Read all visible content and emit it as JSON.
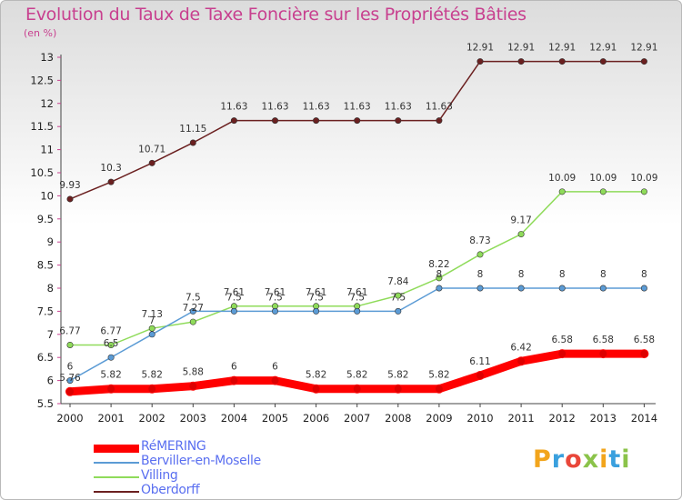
{
  "title": "Evolution du Taux de Taxe Foncière sur les Propriétés Bâties",
  "unit_label": "(en %)",
  "logo": {
    "text": "Proxiti",
    "colors": [
      "#f2a51c",
      "#3aa0de",
      "#e9473a",
      "#8bc34a",
      "#f2a51c",
      "#3aa0de",
      "#8bc34a"
    ]
  },
  "chart_data": {
    "type": "line",
    "x": [
      "2000",
      "2001",
      "2002",
      "2003",
      "2004",
      "2005",
      "2006",
      "2007",
      "2008",
      "2009",
      "2010",
      "2011",
      "2012",
      "2013",
      "2014"
    ],
    "ylim": [
      5.5,
      13
    ],
    "yticks": [
      "5.5",
      "6",
      "6.5",
      "7",
      "7.5",
      "8",
      "8.5",
      "9",
      "9.5",
      "10",
      "10.5",
      "11",
      "11.5",
      "12",
      "12.5",
      "13"
    ],
    "grid": false,
    "legend_position": "bottom-left",
    "series": [
      {
        "name": "RéMERING",
        "color": "#ff0000",
        "values": [
          5.76,
          5.82,
          5.82,
          5.88,
          6,
          6,
          5.82,
          5.82,
          5.82,
          5.82,
          6.11,
          6.42,
          6.58,
          6.58,
          6.58
        ],
        "labels": [
          "5.76",
          "5.82",
          "5.82",
          "5.88",
          "6",
          "6",
          "5.82",
          "5.82",
          "5.82",
          "5.82",
          "6.11",
          "6.42",
          "6.58",
          "6.58",
          "6.58"
        ]
      },
      {
        "name": "Berviller-en-Moselle",
        "color": "#5b9bd5",
        "values": [
          6,
          6.5,
          7,
          7.5,
          7.5,
          7.5,
          7.5,
          7.5,
          7.5,
          8,
          8,
          8,
          8,
          8,
          8
        ],
        "labels": [
          "6",
          "6.5",
          "7",
          "7.5",
          "7.5",
          "7.5",
          "7.5",
          "7.5",
          "7.5",
          "8",
          "8",
          "8",
          "8",
          "8",
          "8"
        ]
      },
      {
        "name": "Villing",
        "color": "#8fdb5a",
        "values": [
          6.77,
          6.77,
          7.13,
          7.27,
          7.61,
          7.61,
          7.61,
          7.61,
          7.84,
          8.22,
          8.73,
          9.17,
          10.09,
          10.09,
          10.09
        ],
        "labels": [
          "6.77",
          "6.77",
          "7.13",
          "7.27",
          "7.61",
          "7.61",
          "7.61",
          "7.61",
          "7.84",
          "8.22",
          "8.73",
          "9.17",
          "10.09",
          "10.09",
          "10.09"
        ]
      },
      {
        "name": "Oberdorff",
        "color": "#6b2020",
        "values": [
          9.93,
          10.3,
          10.71,
          11.15,
          11.63,
          11.63,
          11.63,
          11.63,
          11.63,
          11.63,
          12.91,
          12.91,
          12.91,
          12.91,
          12.91
        ],
        "labels": [
          "9.93",
          "10.3",
          "10.71",
          "11.15",
          "11.63",
          "11.63",
          "11.63",
          "11.63",
          "11.63",
          "11.63",
          "12.91",
          "12.91",
          "12.91",
          "12.91",
          "12.91"
        ]
      }
    ]
  }
}
